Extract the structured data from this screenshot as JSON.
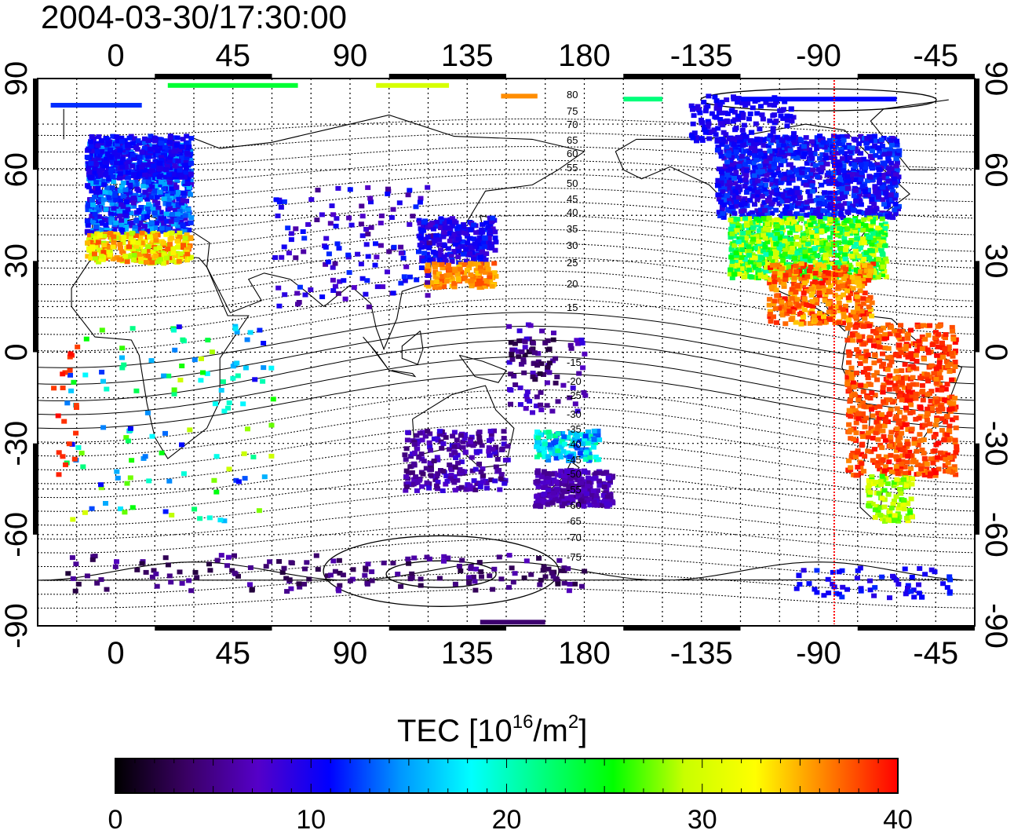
{
  "title": "2004-03-30/17:30:00",
  "map": {
    "projection": "equirectangular",
    "lon_tick_labels": [
      "0",
      "45",
      "90",
      "135",
      "180",
      "-135",
      "-90",
      "-45"
    ],
    "lat_tick_labels": [
      "90",
      "60",
      "30",
      "0",
      "-30",
      "-60",
      "-90"
    ],
    "gridlines": "dotted, every 15 degrees",
    "meridian_marker": {
      "lon": -84,
      "color": "#ff0000",
      "style": "dotted"
    },
    "contour_labels_upper": [
      "80",
      "75",
      "70",
      "65",
      "60",
      "55",
      "50",
      "45",
      "40",
      "35",
      "30",
      "25",
      "20",
      "15"
    ],
    "contour_labels_lower": [
      "-15",
      "-20",
      "-25",
      "-30",
      "-35",
      "-40",
      "-45",
      "-50",
      "-55",
      "-60",
      "-65",
      "-70",
      "-75"
    ]
  },
  "colorbar": {
    "label_main": "TEC  [10",
    "label_exp1": "16",
    "label_mid": "/m",
    "label_exp2": "2",
    "label_end": "]",
    "ticks": [
      "0",
      "10",
      "20",
      "30",
      "40"
    ],
    "range": [
      0,
      40
    ],
    "colors": [
      "#000000",
      "#3a0064",
      "#5500c8",
      "#0000ff",
      "#0096ff",
      "#00ffff",
      "#00ff80",
      "#00ff00",
      "#c8ff00",
      "#ffff00",
      "#ff8000",
      "#ff0000"
    ]
  }
}
